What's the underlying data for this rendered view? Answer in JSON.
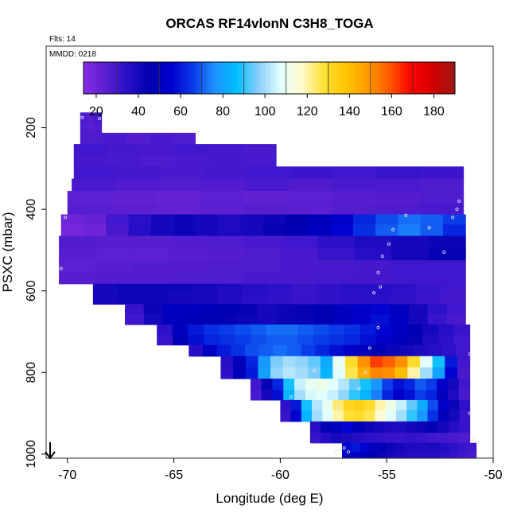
{
  "chart_data": {
    "type": "heatmap",
    "title": "ORCAS RF14vlonN C3H8_TOGA",
    "annotations": [
      "Flts: 14",
      "MMDD: 0218"
    ],
    "xlabel": "Longitude (deg E)",
    "ylabel": "PSXC (mbar)",
    "xlim": [
      -71,
      -50
    ],
    "ylim": [
      1010,
      0
    ],
    "y_reversed": true,
    "x_ticks": [
      -70,
      -65,
      -60,
      -55,
      -50
    ],
    "y_ticks": [
      200,
      400,
      600,
      800,
      1000
    ],
    "colorbar": {
      "range": [
        14,
        190
      ],
      "ticks": [
        20,
        40,
        60,
        80,
        100,
        120,
        140,
        160,
        180
      ],
      "colors": [
        "#8a2be2",
        "#5a1fd0",
        "#2a10c8",
        "#0000b0",
        "#0000cc",
        "#0a3ae8",
        "#1e90ff",
        "#00bfff",
        "#87cefa",
        "#e0ffff",
        "#fffacd",
        "#ffe135",
        "#ffc400",
        "#ff9a00",
        "#ff5a00",
        "#ff0000",
        "#d00000",
        "#a01818"
      ]
    },
    "grid": false,
    "north_arrow_present": true,
    "rows": [
      {
        "p": 175,
        "x0": -69.4,
        "x1": -68.4,
        "values": [
          28,
          26,
          30
        ]
      },
      {
        "p": 200,
        "x0": -69.4,
        "x1": -68.4,
        "values": [
          27,
          25,
          27
        ]
      },
      {
        "p": 225,
        "x0": -69.4,
        "x1": -64.0,
        "values": [
          27,
          28,
          26,
          28,
          27
        ]
      },
      {
        "p": 255,
        "x0": -69.7,
        "x1": -60.2,
        "values": [
          30,
          29,
          28,
          30,
          29,
          28
        ]
      },
      {
        "p": 280,
        "x0": -69.7,
        "x1": -60.2,
        "values": [
          29,
          28,
          27,
          28,
          29,
          28
        ]
      },
      {
        "p": 310,
        "x0": -69.7,
        "x1": -51.4,
        "values": [
          30,
          29,
          28,
          29,
          30,
          31,
          30,
          32,
          31
        ]
      },
      {
        "p": 340,
        "x0": -69.8,
        "x1": -51.4,
        "values": [
          28,
          27,
          26,
          27,
          28,
          27,
          28,
          28,
          27
        ]
      },
      {
        "p": 370,
        "x0": -70.0,
        "x1": -51.4,
        "values": [
          24,
          23,
          22,
          24,
          23,
          24,
          25,
          26,
          27
        ]
      },
      {
        "p": 400,
        "x0": -70.0,
        "x1": -51.4,
        "values": [
          25,
          24,
          23,
          24,
          25,
          24,
          26,
          27,
          28
        ]
      },
      {
        "p": 425,
        "x0": -70.3,
        "x1": -51.3,
        "values": [
          20,
          22,
          30,
          35,
          40,
          42,
          40,
          38,
          40,
          42,
          45,
          48,
          55,
          62,
          68,
          72,
          70,
          66
        ]
      },
      {
        "p": 450,
        "x0": -70.3,
        "x1": -51.3,
        "values": [
          18,
          20,
          28,
          36,
          40,
          42,
          40,
          38,
          40,
          44,
          46,
          50,
          56,
          64,
          70,
          74,
          70,
          62
        ]
      },
      {
        "p": 480,
        "x0": -70.4,
        "x1": -51.3,
        "values": [
          26,
          25,
          25,
          26,
          27,
          28,
          30,
          34,
          38,
          40,
          42
        ]
      },
      {
        "p": 510,
        "x0": -70.4,
        "x1": -51.3,
        "values": [
          25,
          24,
          24,
          25,
          26,
          27,
          28,
          32,
          36,
          40,
          44
        ]
      },
      {
        "p": 540,
        "x0": -70.4,
        "x1": -51.3,
        "values": [
          24,
          25,
          26,
          26,
          27,
          27,
          28,
          28,
          29,
          30,
          30
        ]
      },
      {
        "p": 570,
        "x0": -70.4,
        "x1": -51.3,
        "values": [
          25,
          26,
          26,
          27,
          27,
          28,
          28,
          29,
          29,
          30,
          30
        ]
      },
      {
        "p": 595,
        "x0": -68.8,
        "x1": -51.3,
        "values": [
          40,
          42,
          42,
          41,
          40,
          38,
          36,
          34,
          32,
          33,
          35,
          36,
          34,
          32,
          30
        ]
      },
      {
        "p": 620,
        "x0": -68.8,
        "x1": -51.3,
        "values": [
          40,
          41,
          41,
          40,
          39,
          37,
          35,
          33,
          32,
          33,
          34,
          35,
          33,
          31,
          29
        ]
      },
      {
        "p": 645,
        "x0": -67.3,
        "x1": -51.3,
        "values": [
          32,
          42,
          52,
          50,
          48,
          46,
          44,
          40,
          42,
          44,
          46,
          50,
          54,
          56,
          50,
          40,
          34,
          30
        ]
      },
      {
        "p": 670,
        "x0": -67.3,
        "x1": -51.3,
        "values": [
          30,
          40,
          50,
          48,
          46,
          44,
          42,
          40,
          42,
          44,
          46,
          50,
          54,
          58,
          52,
          40,
          32,
          28
        ]
      },
      {
        "p": 695,
        "x0": -65.8,
        "x1": -51.1,
        "values": [
          34,
          50,
          60,
          64,
          66,
          68,
          70,
          72,
          72,
          70,
          68,
          66,
          64,
          60,
          56,
          52,
          46,
          40,
          36,
          32
        ]
      },
      {
        "p": 720,
        "x0": -65.8,
        "x1": -51.1,
        "values": [
          32,
          48,
          58,
          62,
          64,
          66,
          68,
          70,
          70,
          68,
          66,
          64,
          62,
          58,
          54,
          50,
          44,
          38,
          34,
          30
        ]
      },
      {
        "p": 745,
        "x0": -64.3,
        "x1": -51.1,
        "values": [
          36,
          52,
          60,
          64,
          68,
          70,
          72,
          70,
          66,
          62,
          58,
          54,
          50,
          46,
          42,
          40,
          38,
          36,
          34,
          30
        ]
      },
      {
        "p": 775,
        "x0": -62.8,
        "x1": -51.1,
        "values": [
          36,
          50,
          62,
          78,
          96,
          100,
          98,
          94,
          82,
          110,
          130,
          150,
          162,
          158,
          150,
          130,
          108,
          88,
          60,
          30
        ]
      },
      {
        "p": 800,
        "x0": -62.8,
        "x1": -51.1,
        "values": [
          34,
          48,
          60,
          80,
          98,
          102,
          100,
          96,
          84,
          108,
          126,
          144,
          152,
          150,
          140,
          120,
          100,
          80,
          56,
          28
        ]
      },
      {
        "p": 830,
        "x0": -61.4,
        "x1": -51.1,
        "values": [
          30,
          44,
          62,
          88,
          104,
          110,
          112,
          108,
          102,
          94,
          88,
          78,
          66,
          58,
          62,
          70,
          66,
          54,
          40,
          30
        ]
      },
      {
        "p": 855,
        "x0": -61.4,
        "x1": -51.1,
        "values": [
          28,
          40,
          58,
          84,
          100,
          106,
          108,
          104,
          98,
          90,
          84,
          74,
          62,
          54,
          58,
          66,
          62,
          50,
          38,
          28
        ]
      },
      {
        "p": 880,
        "x0": -60.0,
        "x1": -51.1,
        "values": [
          34,
          60,
          88,
          102,
          110,
          124,
          132,
          134,
          130,
          120,
          112,
          104,
          94,
          82,
          68,
          54,
          42,
          34
        ]
      },
      {
        "p": 905,
        "x0": -60.0,
        "x1": -51.1,
        "values": [
          32,
          56,
          84,
          100,
          108,
          120,
          128,
          130,
          126,
          116,
          108,
          100,
          90,
          78,
          64,
          50,
          40,
          32
        ]
      },
      {
        "p": 935,
        "x0": -58.6,
        "x1": -51.1,
        "values": [
          36,
          44,
          52,
          56,
          48,
          42,
          40,
          38,
          38,
          40,
          42,
          44,
          40,
          36,
          32
        ]
      },
      {
        "p": 960,
        "x0": -58.6,
        "x1": -51.1,
        "values": [
          32,
          36,
          40,
          38,
          36,
          34,
          33,
          32,
          32,
          33,
          32,
          30,
          29,
          28,
          27
        ]
      },
      {
        "p": 985,
        "x0": -57.1,
        "x1": -50.8,
        "values": [
          56,
          60,
          56,
          50,
          46,
          42,
          40,
          38,
          38,
          38,
          38,
          36,
          34,
          32,
          30
        ]
      },
      {
        "p": 1005,
        "x0": -57.1,
        "x1": -50.8,
        "values": [
          50,
          54,
          50,
          46,
          42,
          40,
          38,
          36,
          36,
          36,
          36,
          34,
          32,
          30,
          28
        ]
      }
    ],
    "points": [
      {
        "lon": -69.3,
        "p": 175
      },
      {
        "lon": -68.5,
        "p": 178
      },
      {
        "lon": -70.1,
        "p": 420
      },
      {
        "lon": -70.3,
        "p": 545
      },
      {
        "lon": -54.7,
        "p": 450
      },
      {
        "lon": -54.1,
        "p": 415
      },
      {
        "lon": -53.0,
        "p": 445
      },
      {
        "lon": -51.9,
        "p": 420
      },
      {
        "lon": -51.7,
        "p": 400
      },
      {
        "lon": -51.6,
        "p": 380
      },
      {
        "lon": -52.3,
        "p": 505
      },
      {
        "lon": -54.9,
        "p": 485
      },
      {
        "lon": -55.2,
        "p": 515
      },
      {
        "lon": -55.4,
        "p": 555
      },
      {
        "lon": -55.6,
        "p": 605
      },
      {
        "lon": -55.3,
        "p": 590
      },
      {
        "lon": -55.4,
        "p": 690
      },
      {
        "lon": -55.8,
        "p": 740
      },
      {
        "lon": -56.0,
        "p": 800
      },
      {
        "lon": -56.3,
        "p": 840
      },
      {
        "lon": -57.3,
        "p": 885
      },
      {
        "lon": -59.5,
        "p": 860
      },
      {
        "lon": -58.4,
        "p": 795
      },
      {
        "lon": -51.1,
        "p": 755
      },
      {
        "lon": -51.1,
        "p": 900
      },
      {
        "lon": -50.9,
        "p": 965
      },
      {
        "lon": -57.0,
        "p": 985
      },
      {
        "lon": -56.8,
        "p": 995
      },
      {
        "lon": -57.2,
        "p": 990
      },
      {
        "lon": -57.4,
        "p": 993
      }
    ]
  }
}
